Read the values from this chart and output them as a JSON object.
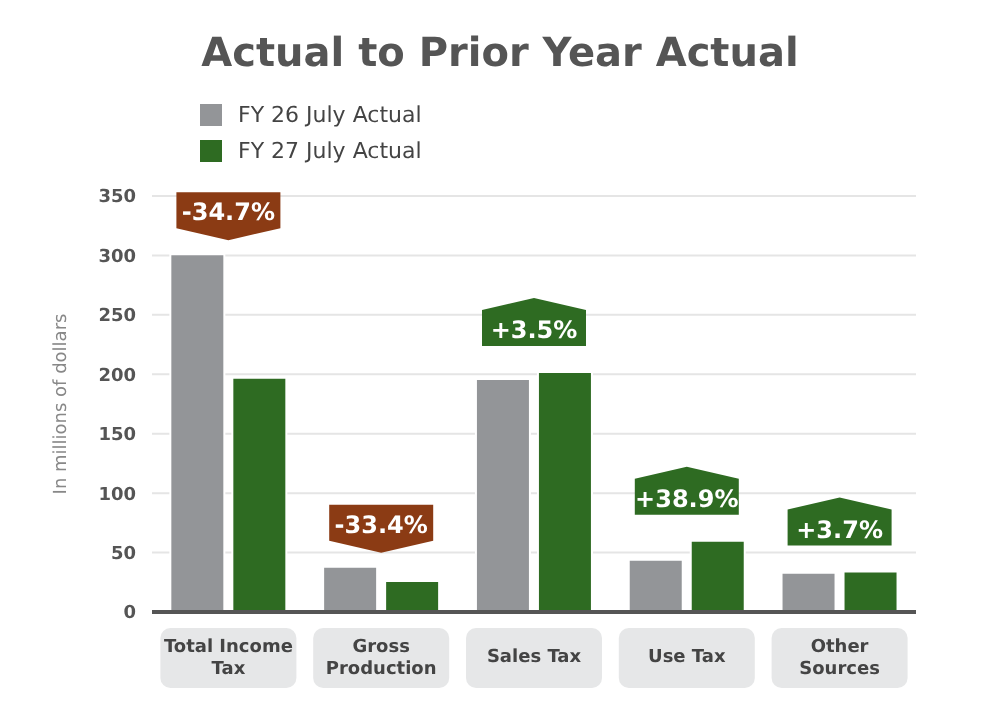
{
  "chart_data": {
    "type": "bar",
    "title": "Actual to Prior Year Actual",
    "ylabel": "In millions of dollars",
    "categories": [
      "Total Income Tax",
      "Gross Production",
      "Sales Tax",
      "Use Tax",
      "Other Sources"
    ],
    "series": [
      {
        "name": "FY 26 July Actual",
        "color": "#939598",
        "values": [
          301,
          38,
          196,
          44,
          33
        ]
      },
      {
        "name": "FY 27 July Actual",
        "color": "#2e6b22",
        "values": [
          197,
          26,
          202,
          60,
          34
        ]
      }
    ],
    "ylim": [
      0,
      350
    ],
    "yticks": [
      0,
      50,
      100,
      150,
      200,
      250,
      300,
      350
    ],
    "grid": "y",
    "legend": "top left",
    "annotations": [
      "-34.7%",
      "-33.4%",
      "+3.5%",
      "+38.9%",
      "+3.7%"
    ]
  }
}
